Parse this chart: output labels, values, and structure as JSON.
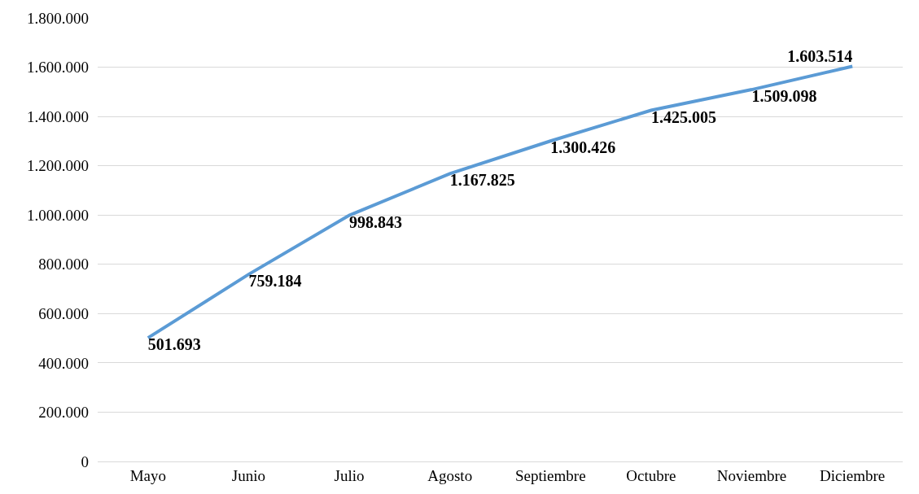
{
  "chart_data": {
    "type": "line",
    "categories": [
      "Mayo",
      "Junio",
      "Julio",
      "Agosto",
      "Septiembre",
      "Octubre",
      "Noviembre",
      "Diciembre"
    ],
    "series": [
      {
        "color": "#5b9bd5",
        "values": [
          501693,
          759184,
          998843,
          1167825,
          1300426,
          1425005,
          1509098,
          1603514
        ],
        "value_labels": [
          "501.693",
          "759.184",
          "998.843",
          "1.167.825",
          "1.300.426",
          "1.425.005",
          "1.509.098",
          "1.603.514"
        ]
      }
    ],
    "ylim": [
      0,
      1800000
    ],
    "yticks": [
      0,
      {
        "value": 200000,
        "label": "200.000"
      },
      {
        "value": 400000,
        "label": "400.000"
      },
      {
        "value": 600000,
        "label": "600.000"
      },
      {
        "value": 800000,
        "label": "800.000"
      },
      {
        "value": 1000000,
        "label": "1.000.000"
      },
      {
        "value": 1200000,
        "label": "1.200.000"
      },
      {
        "value": 1400000,
        "label": "1.400.000"
      },
      {
        "value": 1600000,
        "label": "1.600.000"
      },
      {
        "value": 1800000,
        "label": "1.800.000"
      }
    ],
    "grid": "y",
    "marker": "none",
    "line_style": "solid"
  }
}
